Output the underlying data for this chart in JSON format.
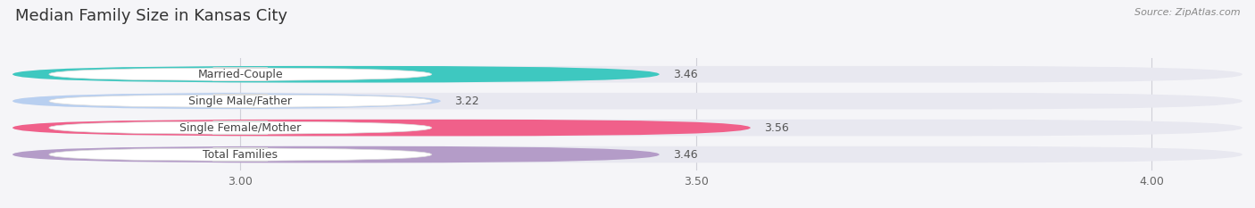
{
  "title": "Median Family Size in Kansas City",
  "source": "Source: ZipAtlas.com",
  "categories": [
    "Married-Couple",
    "Single Male/Father",
    "Single Female/Mother",
    "Total Families"
  ],
  "values": [
    3.46,
    3.22,
    3.56,
    3.46
  ],
  "bar_colors": [
    "#3ec8c0",
    "#b8cff0",
    "#f0608a",
    "#b49cc8"
  ],
  "bar_background": "#e8e8f0",
  "xlim_min": 2.75,
  "xlim_max": 4.1,
  "xticks": [
    3.0,
    3.5,
    4.0
  ],
  "xtick_labels": [
    "3.00",
    "3.50",
    "4.00"
  ],
  "title_fontsize": 13,
  "label_fontsize": 9,
  "value_fontsize": 9,
  "bar_height": 0.62,
  "bg_color": "#f5f5f8"
}
